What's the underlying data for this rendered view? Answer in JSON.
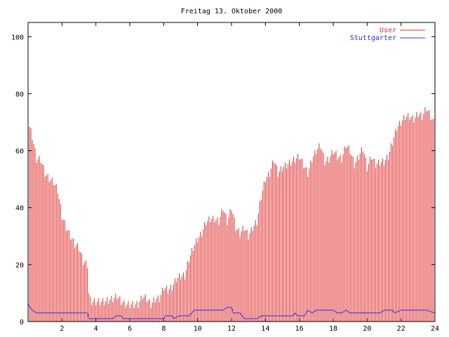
{
  "chart_data": {
    "type": "bar",
    "title": "Freitag 13. Oktober 2000",
    "xlabel": "",
    "ylabel": "",
    "xlim": [
      0,
      24
    ],
    "ylim": [
      0,
      105
    ],
    "x_ticks": [
      "2",
      "4",
      "6",
      "8",
      "10",
      "12",
      "14",
      "16",
      "18",
      "20",
      "22",
      "24"
    ],
    "y_ticks": [
      "0",
      "20",
      "40",
      "60",
      "80",
      "100"
    ],
    "grid": false,
    "legend_position": "top-right",
    "series": [
      {
        "name": "User",
        "color": "#e03030",
        "style": "impulses",
        "points": [
          [
            0.0,
            70
          ],
          [
            0.25,
            65
          ],
          [
            0.5,
            57
          ],
          [
            0.75,
            57
          ],
          [
            1.0,
            52
          ],
          [
            1.25,
            50
          ],
          [
            1.5,
            49
          ],
          [
            1.75,
            46
          ],
          [
            2.0,
            37
          ],
          [
            2.25,
            33
          ],
          [
            2.5,
            30
          ],
          [
            2.75,
            27
          ],
          [
            3.0,
            26
          ],
          [
            3.25,
            21
          ],
          [
            3.5,
            20
          ],
          [
            3.6,
            8
          ],
          [
            3.75,
            7
          ],
          [
            4.0,
            7
          ],
          [
            4.5,
            7
          ],
          [
            5.0,
            8
          ],
          [
            5.25,
            9
          ],
          [
            5.5,
            7
          ],
          [
            5.75,
            6
          ],
          [
            6.0,
            6
          ],
          [
            6.5,
            6
          ],
          [
            6.75,
            9
          ],
          [
            7.0,
            8
          ],
          [
            7.25,
            6
          ],
          [
            7.5,
            8
          ],
          [
            7.75,
            8
          ],
          [
            8.0,
            12
          ],
          [
            8.25,
            11
          ],
          [
            8.5,
            12
          ],
          [
            8.75,
            15
          ],
          [
            9.0,
            16
          ],
          [
            9.25,
            16
          ],
          [
            9.5,
            22
          ],
          [
            9.75,
            26
          ],
          [
            10.0,
            29
          ],
          [
            10.25,
            31
          ],
          [
            10.5,
            35
          ],
          [
            10.75,
            36
          ],
          [
            11.0,
            36
          ],
          [
            11.25,
            35
          ],
          [
            11.5,
            40
          ],
          [
            11.75,
            35
          ],
          [
            12.0,
            40
          ],
          [
            12.25,
            33
          ],
          [
            12.5,
            31
          ],
          [
            12.75,
            33
          ],
          [
            13.0,
            30
          ],
          [
            13.25,
            33
          ],
          [
            13.5,
            35
          ],
          [
            13.75,
            44
          ],
          [
            14.0,
            50
          ],
          [
            14.25,
            52
          ],
          [
            14.5,
            57
          ],
          [
            14.75,
            52
          ],
          [
            15.0,
            54
          ],
          [
            15.25,
            55
          ],
          [
            15.5,
            56
          ],
          [
            15.75,
            57
          ],
          [
            16.0,
            58
          ],
          [
            16.25,
            55
          ],
          [
            16.5,
            52
          ],
          [
            16.75,
            57
          ],
          [
            17.0,
            60
          ],
          [
            17.25,
            62
          ],
          [
            17.5,
            56
          ],
          [
            17.75,
            57
          ],
          [
            18.0,
            60
          ],
          [
            18.25,
            58
          ],
          [
            18.5,
            57
          ],
          [
            18.75,
            62
          ],
          [
            19.0,
            60
          ],
          [
            19.25,
            55
          ],
          [
            19.5,
            58
          ],
          [
            19.75,
            61
          ],
          [
            20.0,
            54
          ],
          [
            20.25,
            58
          ],
          [
            20.5,
            55
          ],
          [
            20.75,
            56
          ],
          [
            21.0,
            56
          ],
          [
            21.25,
            58
          ],
          [
            21.5,
            63
          ],
          [
            21.75,
            68
          ],
          [
            22.0,
            70
          ],
          [
            22.25,
            72
          ],
          [
            22.5,
            72
          ],
          [
            22.75,
            71
          ],
          [
            23.0,
            73
          ],
          [
            23.25,
            72
          ],
          [
            23.5,
            75
          ],
          [
            23.75,
            72
          ],
          [
            24.0,
            69
          ]
        ]
      },
      {
        "name": "Stuttgarter",
        "color": "#3030e0",
        "style": "line",
        "points": [
          [
            0.0,
            6
          ],
          [
            0.25,
            4
          ],
          [
            0.5,
            3
          ],
          [
            1.0,
            3
          ],
          [
            2.0,
            3
          ],
          [
            3.0,
            3
          ],
          [
            3.5,
            3
          ],
          [
            3.6,
            1
          ],
          [
            4.0,
            1
          ],
          [
            5.0,
            1
          ],
          [
            5.2,
            2
          ],
          [
            5.5,
            2
          ],
          [
            5.6,
            1
          ],
          [
            6.0,
            1
          ],
          [
            7.0,
            1
          ],
          [
            8.0,
            1
          ],
          [
            8.1,
            2
          ],
          [
            8.5,
            2
          ],
          [
            8.6,
            1
          ],
          [
            8.9,
            2
          ],
          [
            9.5,
            2
          ],
          [
            9.8,
            4
          ],
          [
            10.5,
            4
          ],
          [
            11.5,
            4
          ],
          [
            11.75,
            5
          ],
          [
            12.0,
            5
          ],
          [
            12.1,
            3
          ],
          [
            12.5,
            3
          ],
          [
            12.75,
            1
          ],
          [
            13.0,
            1
          ],
          [
            13.5,
            1
          ],
          [
            13.75,
            2
          ],
          [
            14.0,
            2
          ],
          [
            15.0,
            2
          ],
          [
            15.6,
            2
          ],
          [
            15.75,
            3
          ],
          [
            15.9,
            2
          ],
          [
            16.3,
            2
          ],
          [
            16.5,
            4
          ],
          [
            16.75,
            3
          ],
          [
            17.0,
            4
          ],
          [
            17.5,
            4
          ],
          [
            18.0,
            4
          ],
          [
            18.25,
            3
          ],
          [
            18.5,
            3
          ],
          [
            18.75,
            4
          ],
          [
            19.0,
            3
          ],
          [
            20.0,
            3
          ],
          [
            20.75,
            3
          ],
          [
            21.0,
            4
          ],
          [
            21.5,
            4
          ],
          [
            21.6,
            3
          ],
          [
            22.0,
            4
          ],
          [
            22.5,
            4
          ],
          [
            22.75,
            4
          ],
          [
            23.0,
            4
          ],
          [
            23.5,
            4
          ],
          [
            24.0,
            3
          ]
        ]
      }
    ]
  }
}
